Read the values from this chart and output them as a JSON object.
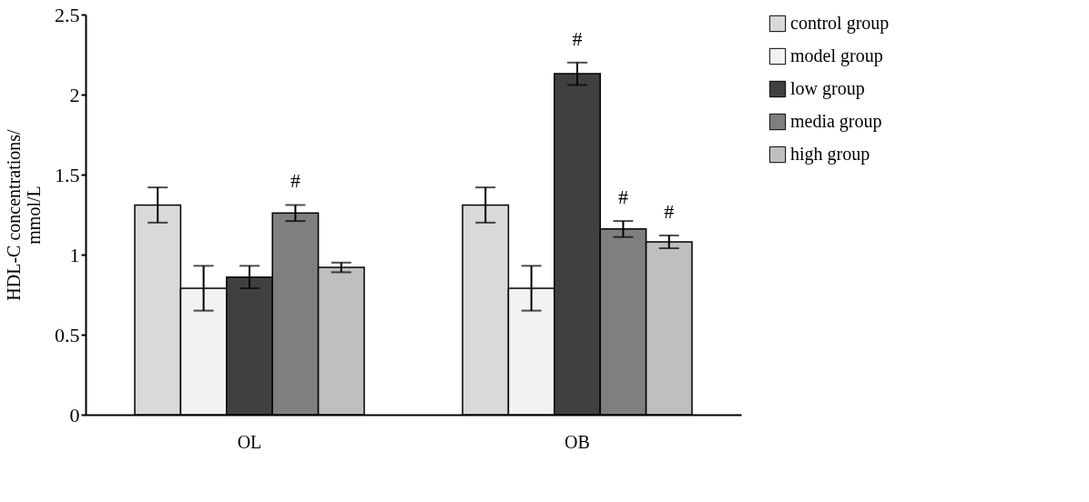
{
  "chart_data": {
    "type": "bar",
    "ylabel": "HDL-C concentrations/\nmmol/L",
    "categories": [
      "OL",
      "OB"
    ],
    "series": [
      {
        "name": "control group",
        "color": "#d9d9d9",
        "values": [
          1.31,
          1.31
        ],
        "errors": [
          0.11,
          0.11
        ]
      },
      {
        "name": "model group",
        "color": "#f2f2f2",
        "values": [
          0.79,
          0.79
        ],
        "errors": [
          0.14,
          0.14
        ]
      },
      {
        "name": "low group",
        "color": "#404040",
        "values": [
          0.86,
          2.13
        ],
        "errors": [
          0.07,
          0.07
        ],
        "value_labels": [
          null,
          "#"
        ]
      },
      {
        "name": "media group",
        "color": "#7f7f7f",
        "values": [
          1.26,
          1.16
        ],
        "errors": [
          0.05,
          0.05
        ],
        "value_labels": [
          "#",
          "#"
        ]
      },
      {
        "name": "high group",
        "color": "#bfbfbf",
        "values": [
          0.92,
          1.08
        ],
        "errors": [
          0.03,
          0.04
        ],
        "value_labels": [
          null,
          "#"
        ]
      }
    ],
    "ylim": [
      0,
      2.5
    ],
    "yticks": [
      0,
      0.5,
      1,
      1.5,
      2,
      2.5
    ],
    "grid": false,
    "legend": "right"
  }
}
